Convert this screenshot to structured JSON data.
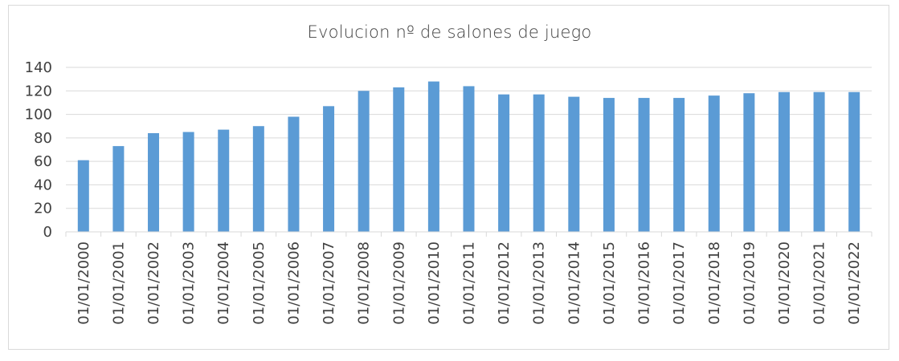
{
  "chart_data": {
    "type": "bar",
    "title": "Evolucion nº de salones de juego",
    "xlabel": "",
    "ylabel": "",
    "categories": [
      "01/01/2000",
      "01/01/2001",
      "01/01/2002",
      "01/01/2003",
      "01/01/2004",
      "01/01/2005",
      "01/01/2006",
      "01/01/2007",
      "01/01/2008",
      "01/01/2009",
      "01/01/2010",
      "01/01/2011",
      "01/01/2012",
      "01/01/2013",
      "01/01/2014",
      "01/01/2015",
      "01/01/2016",
      "01/01/2017",
      "01/01/2018",
      "01/01/2019",
      "01/01/2020",
      "01/01/2021",
      "01/01/2022"
    ],
    "values": [
      61,
      73,
      84,
      85,
      87,
      90,
      98,
      107,
      120,
      123,
      128,
      124,
      117,
      117,
      115,
      114,
      114,
      114,
      116,
      118,
      119,
      119,
      119
    ],
    "ylim": [
      0,
      140
    ],
    "yticks": [
      0,
      20,
      40,
      60,
      80,
      100,
      120,
      140
    ],
    "grid": true,
    "legend": "none",
    "bar_color": "#5b9bd5",
    "grid_color": "#d9d9d9"
  }
}
